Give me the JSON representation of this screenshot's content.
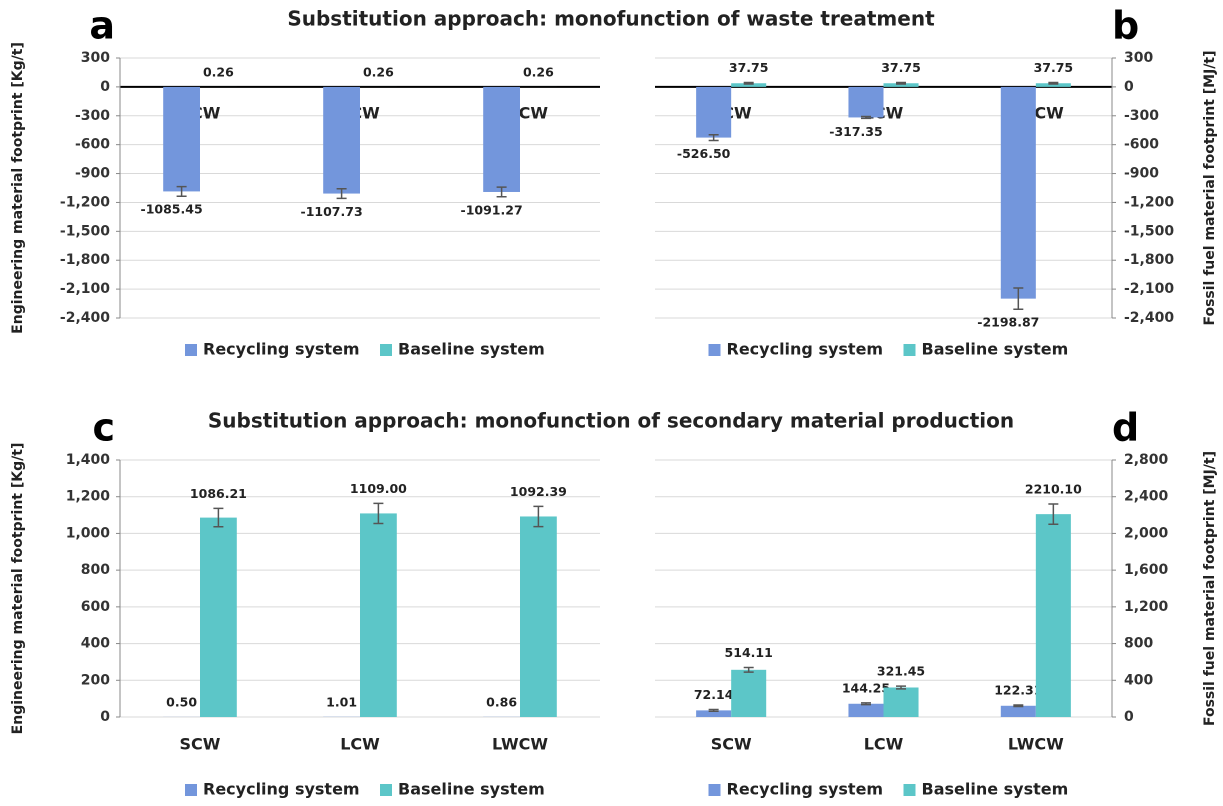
{
  "chart_data": [
    {
      "type": "bar",
      "label": "a",
      "title": "Substitution approach: monofunction of waste treatment",
      "ylabel": "Engineering material footprint [Kg/t]",
      "categories": [
        "SCW",
        "LCW",
        "LWCW"
      ],
      "category_label_position": "inside",
      "series": [
        {
          "name": "Recycling system",
          "color": "#7396dc",
          "values": [
            -1085.45,
            -1107.73,
            -1091.27
          ],
          "errors": [
            50,
            50,
            50
          ]
        },
        {
          "name": "Baseline system",
          "color": "#5cc6c8",
          "values": [
            0.26,
            0.26,
            0.26
          ],
          "errors": [
            0,
            0,
            0
          ]
        }
      ],
      "ylim": [
        -2400,
        300
      ],
      "yticks": [
        {
          "value": -2400,
          "label": "-2,400"
        },
        {
          "value": -2100,
          "label": "-2,100"
        },
        {
          "value": -1800,
          "label": "-1,800"
        },
        {
          "value": -1500,
          "label": "-1,500"
        },
        {
          "value": -1200,
          "label": "-1,200"
        },
        -900,
        -600,
        -300,
        0,
        300
      ],
      "grid": true,
      "zero_line": true,
      "yaxis_position": "left",
      "legend_position": "bottom"
    },
    {
      "type": "bar",
      "label": "b",
      "ylabel": "Fossil fuel material footprint [MJ/t]",
      "categories": [
        "SCW",
        "LCW",
        "LWCW"
      ],
      "category_label_position": "inside",
      "series": [
        {
          "name": "Recycling system",
          "color": "#7396dc",
          "values": [
            -526.5,
            -317.35,
            -2198.87
          ],
          "value_labels": [
            "-526.50",
            "-317.35",
            "-2198.87"
          ],
          "errors": [
            30,
            10,
            110
          ]
        },
        {
          "name": "Baseline system",
          "color": "#5cc6c8",
          "values": [
            37.75,
            37.75,
            37.75
          ],
          "errors": [
            8,
            8,
            8
          ]
        }
      ],
      "ylim": [
        -2400,
        300
      ],
      "yticks": [
        {
          "value": -2400,
          "label": "-2,400"
        },
        {
          "value": -2100,
          "label": "-2,100"
        },
        {
          "value": -1800,
          "label": "-1,800"
        },
        {
          "value": -1500,
          "label": "-1,500"
        },
        {
          "value": -1200,
          "label": "-1,200"
        },
        -900,
        -600,
        -300,
        0,
        300
      ],
      "grid": true,
      "zero_line": true,
      "yaxis_position": "right",
      "legend_position": "bottom"
    },
    {
      "type": "bar",
      "label": "c",
      "title": "Substitution approach: monofunction of secondary material production",
      "ylabel": "Engineering material footprint [Kg/t]",
      "categories": [
        "SCW",
        "LCW",
        "LWCW"
      ],
      "category_label_position": "bottom",
      "series": [
        {
          "name": "Recycling system",
          "color": "#7396dc",
          "values": [
            0.5,
            1.01,
            0.86
          ],
          "value_labels": [
            "0.50",
            "1.01",
            "0.86"
          ],
          "errors": [
            0,
            0,
            0
          ]
        },
        {
          "name": "Baseline system",
          "color": "#5cc6c8",
          "values": [
            1086.21,
            1109,
            1092.39
          ],
          "value_labels": [
            "1086.21",
            "1109.00",
            "1092.39"
          ],
          "errors": [
            50,
            55,
            55
          ]
        }
      ],
      "ylim": [
        0,
        1400
      ],
      "yticks": [
        0,
        200,
        400,
        600,
        800,
        {
          "value": 1000,
          "label": "1,000"
        },
        {
          "value": 1200,
          "label": "1,200"
        },
        {
          "value": 1400,
          "label": "1,400"
        }
      ],
      "grid": true,
      "zero_line": false,
      "yaxis_position": "left",
      "legend_position": "bottom"
    },
    {
      "type": "bar",
      "label": "d",
      "ylabel": "Fossil fuel material footprint [MJ/t]",
      "categories": [
        "SCW",
        "LCW",
        "LWCW"
      ],
      "category_label_position": "bottom",
      "series": [
        {
          "name": "Recycling system",
          "color": "#7396dc",
          "values": [
            72.14,
            144.25,
            122.31
          ],
          "errors": [
            10,
            10,
            8
          ]
        },
        {
          "name": "Baseline system",
          "color": "#5cc6c8",
          "values": [
            514.11,
            321.45,
            2210.1
          ],
          "value_labels": [
            "514.11",
            "321.45",
            "2210.10"
          ],
          "errors": [
            25,
            15,
            110
          ]
        }
      ],
      "ylim": [
        0,
        2800
      ],
      "yticks": [
        0,
        400,
        800,
        {
          "value": 1200,
          "label": "1,200"
        },
        {
          "value": 1600,
          "label": "1,600"
        },
        {
          "value": 2000,
          "label": "2,000"
        },
        {
          "value": 2400,
          "label": "2,400"
        },
        {
          "value": 2800,
          "label": "2,800"
        }
      ],
      "grid": true,
      "zero_line": false,
      "yaxis_position": "right",
      "legend_position": "bottom"
    }
  ]
}
